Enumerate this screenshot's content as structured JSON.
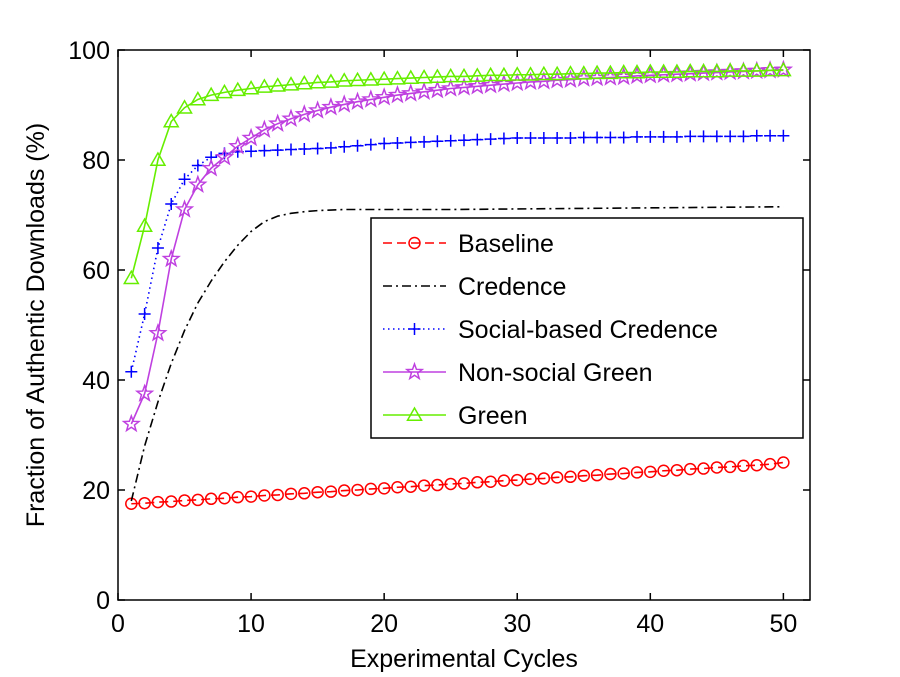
{
  "chart_data": {
    "type": "line",
    "title": "",
    "xlabel": "Experimental Cycles",
    "ylabel": "Fraction of Authentic Downloads (%)",
    "xlim": [
      0,
      52
    ],
    "ylim": [
      0,
      100
    ],
    "xticks": [
      0,
      10,
      20,
      30,
      40,
      50
    ],
    "yticks": [
      0,
      20,
      40,
      60,
      80,
      100
    ],
    "grid": false,
    "legend_position": "center-right",
    "series": [
      {
        "name": "Baseline",
        "color": "#ff0000",
        "line_style": "dashed",
        "marker": "circle",
        "x": [
          1,
          2,
          3,
          4,
          5,
          6,
          7,
          8,
          9,
          10,
          11,
          12,
          13,
          14,
          15,
          16,
          17,
          18,
          19,
          20,
          21,
          22,
          23,
          24,
          25,
          26,
          27,
          28,
          29,
          30,
          31,
          32,
          33,
          34,
          35,
          36,
          37,
          38,
          39,
          40,
          41,
          42,
          43,
          44,
          45,
          46,
          47,
          48,
          49,
          50
        ],
        "y": [
          17.5,
          17.6,
          17.8,
          17.9,
          18.1,
          18.2,
          18.4,
          18.5,
          18.7,
          18.8,
          19.0,
          19.1,
          19.3,
          19.4,
          19.6,
          19.7,
          19.9,
          20.0,
          20.2,
          20.3,
          20.5,
          20.6,
          20.8,
          20.9,
          21.1,
          21.2,
          21.4,
          21.5,
          21.7,
          21.8,
          22.0,
          22.1,
          22.3,
          22.4,
          22.6,
          22.7,
          22.9,
          23.0,
          23.2,
          23.3,
          23.5,
          23.6,
          23.8,
          23.9,
          24.1,
          24.2,
          24.4,
          24.5,
          24.7,
          25.0
        ]
      },
      {
        "name": "Credence",
        "color": "#000000",
        "line_style": "dashdot",
        "marker": "none",
        "x": [
          1,
          2,
          3,
          4,
          5,
          6,
          7,
          8,
          9,
          10,
          11,
          12,
          13,
          14,
          15,
          16,
          17,
          18,
          20,
          25,
          30,
          35,
          40,
          45,
          50
        ],
        "y": [
          18.0,
          28.0,
          36.0,
          43.0,
          49.0,
          54.0,
          58.0,
          61.5,
          64.5,
          67.0,
          68.8,
          69.8,
          70.3,
          70.6,
          70.8,
          70.9,
          71.0,
          71.0,
          71.0,
          71.0,
          71.1,
          71.2,
          71.3,
          71.4,
          71.5
        ]
      },
      {
        "name": "Social-based Credence",
        "color": "#0000ff",
        "line_style": "dotted",
        "marker": "plus",
        "x": [
          1,
          2,
          3,
          4,
          5,
          6,
          7,
          8,
          9,
          10,
          11,
          12,
          13,
          14,
          15,
          16,
          17,
          18,
          19,
          20,
          21,
          22,
          23,
          24,
          25,
          26,
          27,
          28,
          29,
          30,
          31,
          32,
          33,
          34,
          35,
          36,
          37,
          38,
          39,
          40,
          41,
          42,
          43,
          44,
          45,
          46,
          47,
          48,
          49,
          50
        ],
        "y": [
          41.5,
          52.0,
          64.0,
          72.0,
          76.5,
          79.0,
          80.5,
          81.2,
          81.5,
          81.6,
          81.7,
          81.8,
          81.9,
          82.0,
          82.1,
          82.2,
          82.4,
          82.6,
          82.8,
          83.0,
          83.1,
          83.2,
          83.3,
          83.4,
          83.5,
          83.6,
          83.7,
          83.8,
          83.9,
          84.0,
          84.0,
          84.0,
          84.0,
          84.0,
          84.1,
          84.1,
          84.1,
          84.1,
          84.2,
          84.2,
          84.2,
          84.2,
          84.3,
          84.3,
          84.3,
          84.3,
          84.3,
          84.4,
          84.4,
          84.4
        ]
      },
      {
        "name": "Non-social Green",
        "color": "#bf40e0",
        "line_style": "solid",
        "marker": "star",
        "x": [
          1,
          2,
          3,
          4,
          5,
          6,
          7,
          8,
          9,
          10,
          11,
          12,
          13,
          14,
          15,
          16,
          17,
          18,
          19,
          20,
          21,
          22,
          23,
          24,
          25,
          26,
          27,
          28,
          29,
          30,
          31,
          32,
          33,
          34,
          35,
          36,
          37,
          38,
          39,
          40,
          41,
          42,
          43,
          44,
          45,
          46,
          47,
          48,
          49,
          50
        ],
        "y": [
          32.0,
          37.5,
          48.5,
          62.0,
          71.0,
          75.5,
          78.5,
          80.5,
          82.5,
          84.0,
          85.5,
          86.6,
          87.5,
          88.3,
          89.0,
          89.6,
          90.1,
          90.6,
          91.0,
          91.4,
          91.8,
          92.1,
          92.4,
          92.7,
          93.0,
          93.2,
          93.4,
          93.6,
          93.8,
          94.0,
          94.2,
          94.3,
          94.5,
          94.6,
          94.8,
          94.9,
          95.0,
          95.1,
          95.3,
          95.4,
          95.5,
          95.6,
          95.7,
          95.8,
          95.9,
          96.0,
          96.1,
          96.2,
          96.3,
          96.4
        ]
      },
      {
        "name": "Green",
        "color": "#66ee00",
        "line_style": "solid",
        "marker": "triangle",
        "x": [
          1,
          2,
          3,
          4,
          5,
          6,
          7,
          8,
          9,
          10,
          11,
          12,
          13,
          14,
          15,
          16,
          17,
          18,
          19,
          20,
          21,
          22,
          23,
          24,
          25,
          26,
          27,
          28,
          29,
          30,
          31,
          32,
          33,
          34,
          35,
          36,
          37,
          38,
          39,
          40,
          41,
          42,
          43,
          44,
          45,
          46,
          47,
          48,
          49,
          50
        ],
        "y": [
          58.5,
          68.0,
          80.0,
          87.0,
          89.5,
          91.0,
          91.8,
          92.3,
          92.7,
          93.0,
          93.3,
          93.5,
          93.7,
          93.9,
          94.1,
          94.2,
          94.4,
          94.5,
          94.6,
          94.7,
          94.8,
          94.9,
          95.0,
          95.1,
          95.2,
          95.2,
          95.3,
          95.4,
          95.4,
          95.5,
          95.5,
          95.6,
          95.6,
          95.7,
          95.7,
          95.8,
          95.8,
          95.9,
          95.9,
          96.0,
          96.0,
          96.0,
          96.1,
          96.1,
          96.1,
          96.2,
          96.2,
          96.2,
          96.3,
          96.3
        ]
      }
    ]
  }
}
